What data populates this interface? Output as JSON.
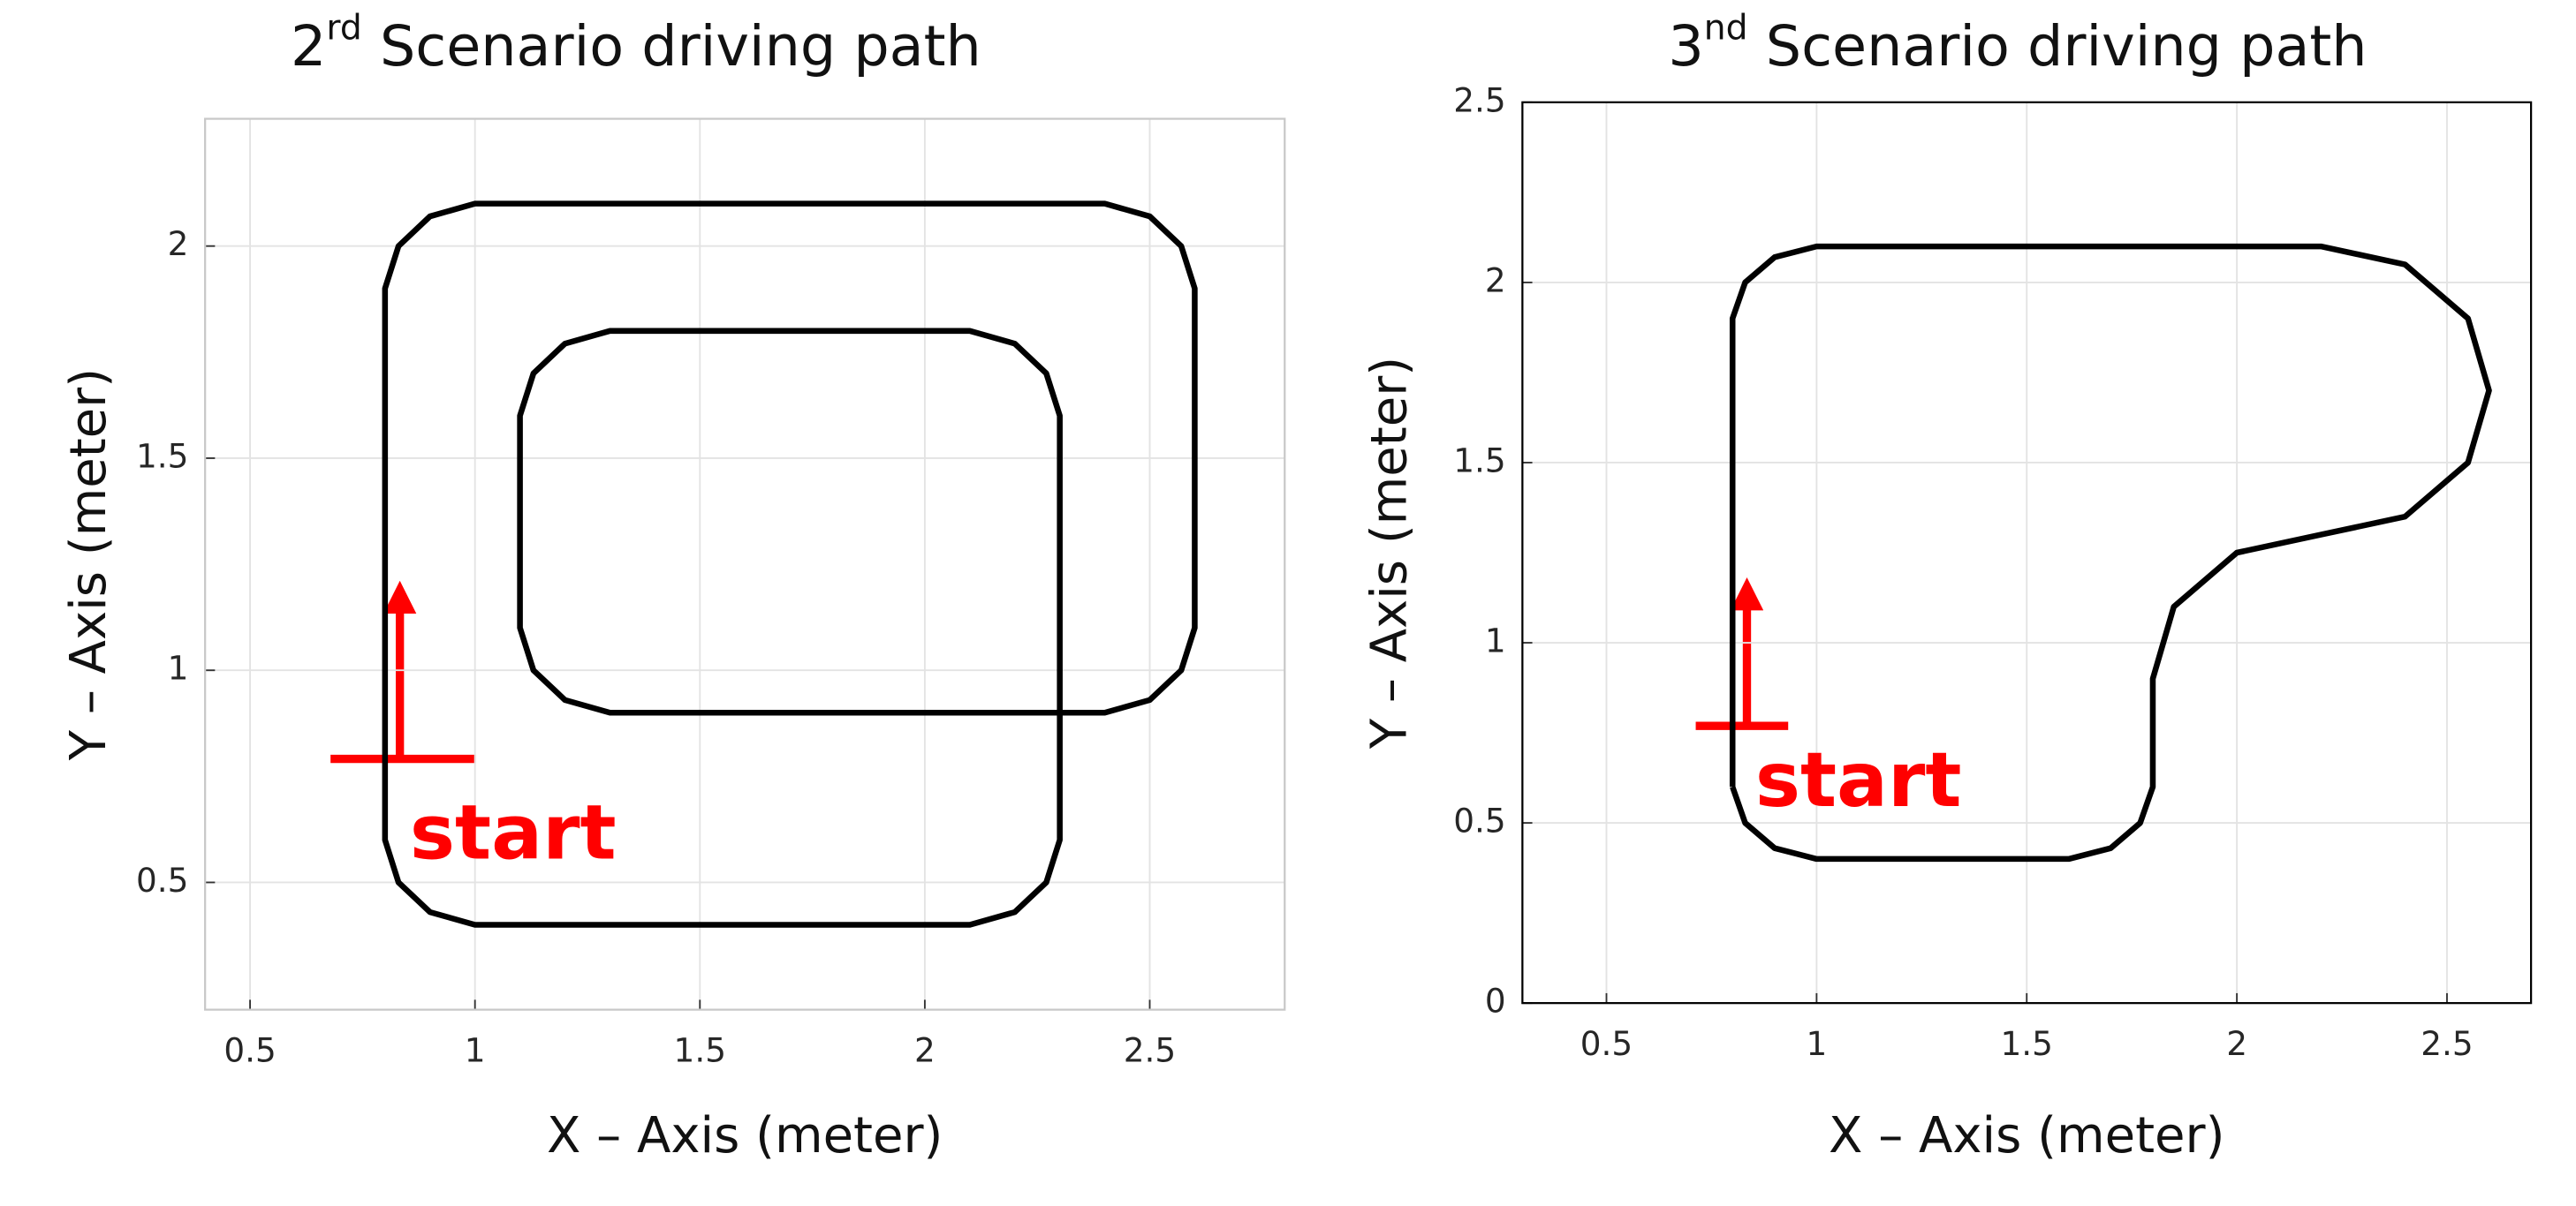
{
  "chart_data": [
    {
      "type": "line",
      "title_number": "2",
      "title_sup": "rd",
      "title_rest": " Scenario driving path",
      "xlabel": "X – Axis (meter)",
      "ylabel": "Y – Axis (meter)",
      "annotation": "start",
      "xlim": [
        0.4,
        2.8
      ],
      "ylim": [
        0.2,
        2.3
      ],
      "xticks": [
        0.5,
        1,
        1.5,
        2,
        2.5
      ],
      "yticks": [
        0.5,
        1,
        1.5,
        2
      ],
      "grid": true,
      "series": [
        {
          "color": "#000000",
          "x": [
            0.8,
            0.8,
            0.83,
            0.9,
            1.0,
            2.4,
            2.5,
            2.57,
            2.6,
            2.6,
            2.57,
            2.5,
            2.4,
            1.3,
            1.2,
            1.13,
            1.1,
            1.1,
            1.13,
            1.2,
            1.3,
            2.1,
            2.2,
            2.27,
            2.3,
            2.3,
            2.27,
            2.2,
            2.1,
            1.0,
            0.9,
            0.83,
            0.8,
            0.8
          ],
          "values": [
            0.8,
            1.9,
            2.0,
            2.07,
            2.1,
            2.1,
            2.07,
            2.0,
            1.9,
            1.1,
            1.0,
            0.93,
            0.9,
            0.9,
            0.93,
            1.0,
            1.1,
            1.6,
            1.7,
            1.77,
            1.8,
            1.8,
            1.77,
            1.7,
            1.6,
            0.6,
            0.5,
            0.43,
            0.4,
            0.4,
            0.43,
            0.5,
            0.6,
            0.8
          ]
        }
      ]
    },
    {
      "type": "line",
      "title_number": "3",
      "title_sup": "nd",
      "title_rest": " Scenario driving path",
      "xlabel": "X – Axis (meter)",
      "ylabel": "Y – Axis (meter)",
      "annotation": "start",
      "xlim": [
        0.3,
        2.7
      ],
      "ylim": [
        0,
        2.5
      ],
      "xticks": [
        0.5,
        1,
        1.5,
        2,
        2.5
      ],
      "yticks": [
        0,
        0.5,
        1,
        1.5,
        2,
        2.5
      ],
      "grid": true,
      "series": [
        {
          "color": "#000000",
          "x": [
            0.8,
            0.8,
            0.83,
            0.9,
            1.0,
            2.2,
            2.4,
            2.55,
            2.6,
            2.55,
            2.4,
            2.2,
            2.0,
            1.85,
            1.8,
            1.8,
            1.77,
            1.7,
            1.6,
            1.0,
            0.9,
            0.83,
            0.8
          ],
          "values": [
            0.6,
            1.9,
            2.0,
            2.07,
            2.1,
            2.1,
            2.05,
            1.9,
            1.7,
            1.5,
            1.35,
            1.3,
            1.25,
            1.1,
            0.9,
            0.6,
            0.5,
            0.43,
            0.4,
            0.4,
            0.43,
            0.5,
            0.6
          ]
        }
      ]
    }
  ]
}
